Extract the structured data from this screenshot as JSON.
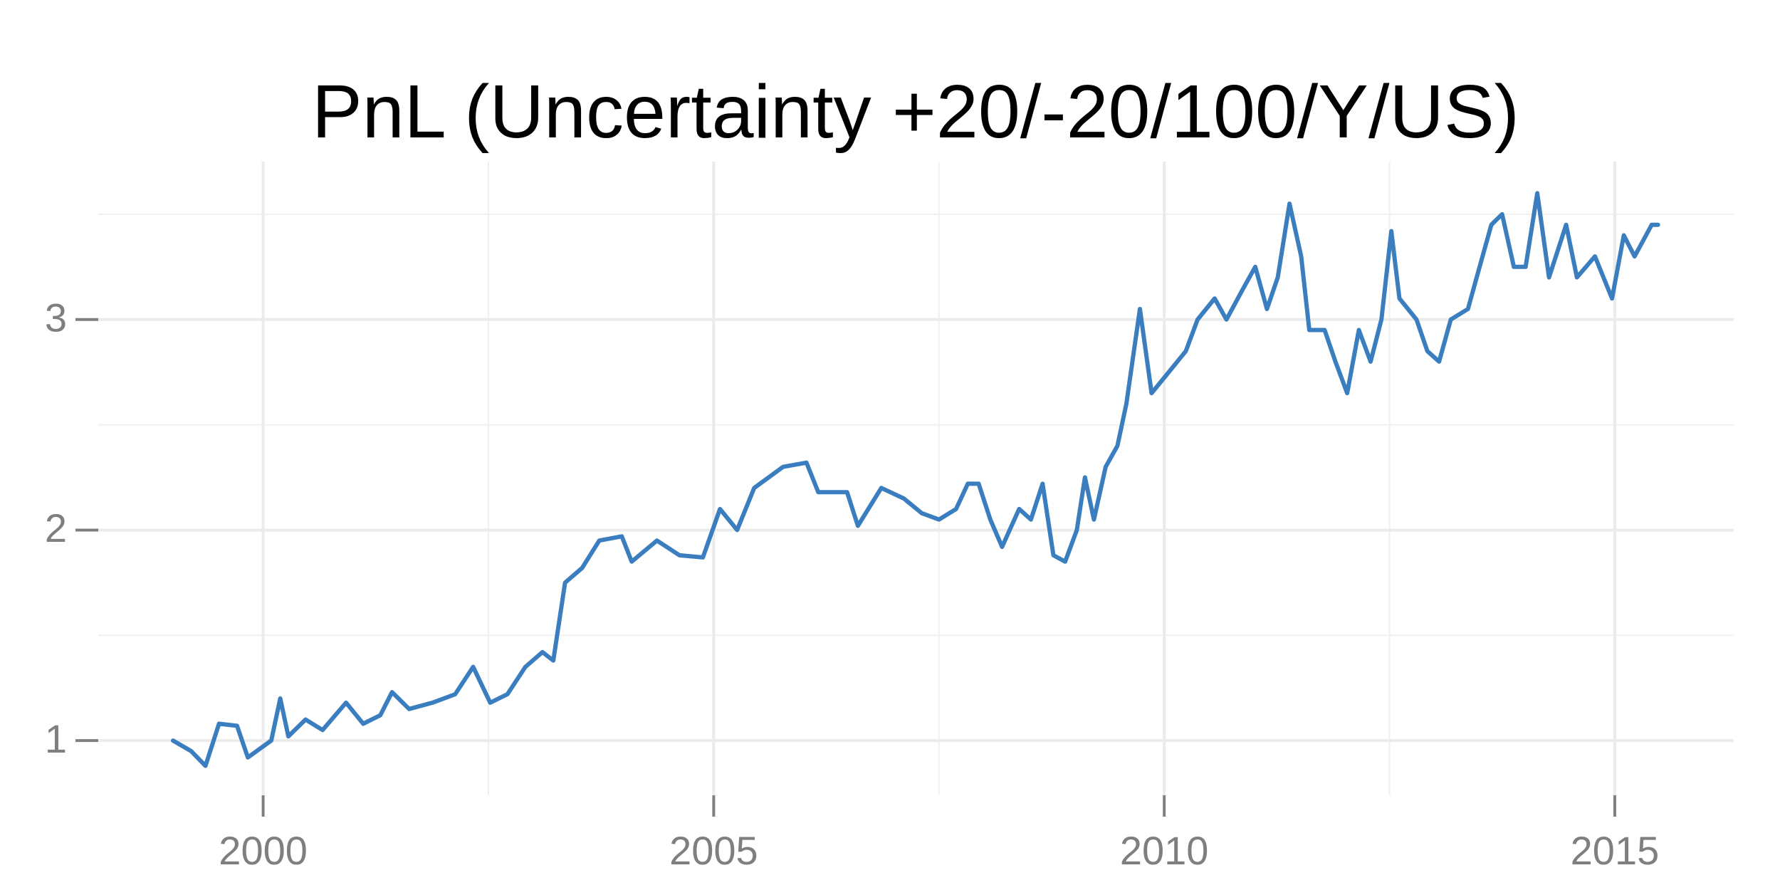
{
  "chart_data": {
    "type": "line",
    "title": "PnL (Uncertainty +20/-20/100/Y/US)",
    "xlim": [
      1998.17,
      2016.32
    ],
    "ylim": [
      0.74,
      3.75
    ],
    "xticks": [
      2000,
      2005,
      2010,
      2015
    ],
    "yticks": [
      1,
      2,
      3
    ],
    "xminorticks": [
      2002.5,
      2007.5,
      2012.5
    ],
    "yminorticks": [
      1.5,
      2.5,
      3.5
    ],
    "grid": true,
    "series": [
      {
        "color": "#3a7ebf",
        "x": [
          1999.0,
          1999.2,
          1999.36,
          1999.51,
          1999.71,
          1999.83,
          2000.09,
          2000.19,
          2000.28,
          2000.47,
          2000.66,
          2000.92,
          2001.11,
          2001.3,
          2001.43,
          2001.62,
          2001.88,
          2002.13,
          2002.33,
          2002.52,
          2002.71,
          2002.91,
          2003.1,
          2003.22,
          2003.35,
          2003.54,
          2003.73,
          2003.98,
          2004.09,
          2004.37,
          2004.62,
          2004.88,
          2005.07,
          2005.26,
          2005.45,
          2005.77,
          2006.03,
          2006.16,
          2006.48,
          2006.6,
          2006.86,
          2007.11,
          2007.31,
          2007.5,
          2007.69,
          2007.82,
          2007.94,
          2008.07,
          2008.2,
          2008.39,
          2008.52,
          2008.65,
          2008.77,
          2008.9,
          2009.03,
          2009.12,
          2009.22,
          2009.35,
          2009.48,
          2009.58,
          2009.73,
          2009.86,
          2010.05,
          2010.24,
          2010.37,
          2010.56,
          2010.69,
          2010.88,
          2011.01,
          2011.14,
          2011.26,
          2011.39,
          2011.52,
          2011.61,
          2011.78,
          2011.9,
          2012.03,
          2012.16,
          2012.29,
          2012.41,
          2012.52,
          2012.61,
          2012.8,
          2012.92,
          2013.05,
          2013.18,
          2013.37,
          2013.5,
          2013.63,
          2013.75,
          2013.88,
          2014.01,
          2014.14,
          2014.27,
          2014.46,
          2014.58,
          2014.78,
          2014.97,
          2015.1,
          2015.22,
          2015.41,
          2015.48
        ],
        "values": [
          1.0,
          0.95,
          0.88,
          1.08,
          1.07,
          0.92,
          1.0,
          1.2,
          1.02,
          1.1,
          1.05,
          1.18,
          1.08,
          1.12,
          1.23,
          1.15,
          1.18,
          1.22,
          1.35,
          1.18,
          1.22,
          1.35,
          1.42,
          1.38,
          1.75,
          1.82,
          1.95,
          1.97,
          1.85,
          1.95,
          1.88,
          1.87,
          2.1,
          2.0,
          2.2,
          2.3,
          2.32,
          2.18,
          2.18,
          2.02,
          2.2,
          2.15,
          2.08,
          2.05,
          2.1,
          2.22,
          2.22,
          2.05,
          1.92,
          2.1,
          2.05,
          2.22,
          1.88,
          1.85,
          2.0,
          2.25,
          2.05,
          2.3,
          2.4,
          2.6,
          3.05,
          2.65,
          2.75,
          2.85,
          3.0,
          3.1,
          3.0,
          3.15,
          3.25,
          3.05,
          3.2,
          3.55,
          3.3,
          2.95,
          2.95,
          2.8,
          2.65,
          2.95,
          2.8,
          3.0,
          3.42,
          3.1,
          3.0,
          2.85,
          2.8,
          3.0,
          3.05,
          3.25,
          3.45,
          3.5,
          3.25,
          3.25,
          3.6,
          3.2,
          3.45,
          3.2,
          3.3,
          3.1,
          3.4,
          3.3,
          3.45,
          3.45
        ]
      }
    ]
  }
}
